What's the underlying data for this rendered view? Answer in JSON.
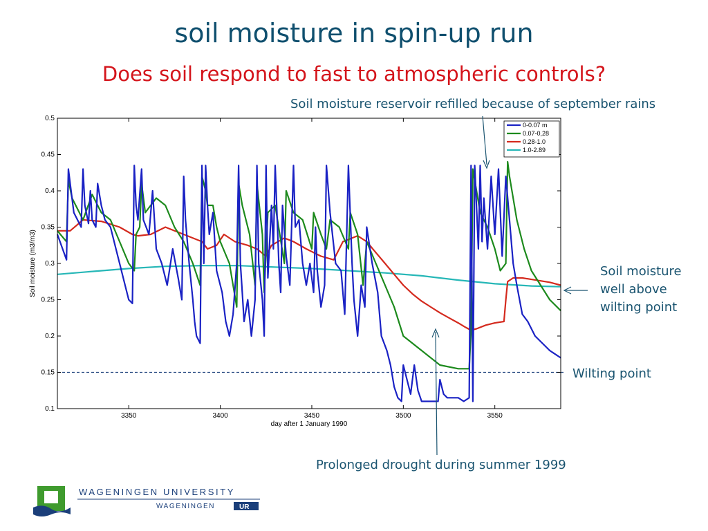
{
  "slide": {
    "title": "soil moisture in spin-up run",
    "subtitle": "Does soil respond to fast to atmospheric controls?"
  },
  "annotations": {
    "september_rains": "Soil moisture reservoir refilled because of september rains",
    "well_above": [
      "Soil moisture",
      "well above",
      "wilting point"
    ],
    "wilting_point": "Wilting point",
    "drought": "Prolonged drought during summer 1999"
  },
  "logo": {
    "line1": "WAGENINGEN UNIVERSITY",
    "line2_a": "WAGENINGEN",
    "line2_b": "UR",
    "green": "#3f9b2e",
    "blue": "#1b3f7a"
  },
  "colors": {
    "title": "#0f4f6e",
    "subtitle": "#d4141b",
    "annotation": "#1a5470"
  },
  "chart_data": {
    "type": "line",
    "title": "",
    "xlabel": "day after 1 January 1990",
    "ylabel": "Soil moisture (m3/m3)",
    "xlim": [
      3311,
      3586
    ],
    "ylim": [
      0.1,
      0.5
    ],
    "xticks": [
      3350,
      3400,
      3450,
      3500,
      3550
    ],
    "yticks": [
      0.1,
      0.15,
      0.2,
      0.25,
      0.3,
      0.35,
      0.4,
      0.45,
      0.5
    ],
    "legend_position": "top-right",
    "grid": false,
    "reference_line": {
      "y": 0.15,
      "style": "dashed",
      "color": "#1b3f7a"
    },
    "series": [
      {
        "name": "0-0.07 m",
        "color": "#1a22c4",
        "x": [
          3311,
          3316,
          3317,
          3318,
          3320,
          3324,
          3325,
          3326,
          3328,
          3329,
          3330,
          3332,
          3333,
          3335,
          3337,
          3340,
          3343,
          3345,
          3348,
          3350,
          3352,
          3353,
          3354,
          3355,
          3357,
          3358,
          3361,
          3363,
          3365,
          3368,
          3371,
          3374,
          3377,
          3379,
          3380,
          3381,
          3383,
          3385,
          3386,
          3387,
          3389,
          3390,
          3391,
          3392,
          3393,
          3394,
          3396,
          3398,
          3401,
          3403,
          3405,
          3407,
          3409,
          3410,
          3411,
          3412,
          3413,
          3415,
          3417,
          3419,
          3420,
          3421,
          3423,
          3424,
          3425,
          3426,
          3428,
          3429,
          3430,
          3432,
          3433,
          3434,
          3436,
          3438,
          3440,
          3441,
          3443,
          3445,
          3447,
          3449,
          3451,
          3452,
          3453,
          3455,
          3457,
          3458,
          3460,
          3463,
          3466,
          3468,
          3470,
          3472,
          3473,
          3475,
          3477,
          3479,
          3480,
          3483,
          3486,
          3488,
          3491,
          3493,
          3495,
          3497,
          3499,
          3500,
          3502,
          3504,
          3506,
          3508,
          3510,
          3513,
          3516,
          3519,
          3520,
          3522,
          3524,
          3527,
          3530,
          3533,
          3536,
          3537,
          3538,
          3539,
          3541,
          3542,
          3543,
          3544,
          3546,
          3548,
          3550,
          3552,
          3554,
          3556,
          3558,
          3560,
          3562,
          3565,
          3568,
          3572,
          3576,
          3580,
          3583,
          3586
        ],
        "y": [
          0.34,
          0.305,
          0.43,
          0.41,
          0.37,
          0.35,
          0.43,
          0.38,
          0.355,
          0.4,
          0.36,
          0.35,
          0.41,
          0.38,
          0.36,
          0.35,
          0.32,
          0.3,
          0.27,
          0.25,
          0.245,
          0.435,
          0.38,
          0.36,
          0.43,
          0.36,
          0.34,
          0.4,
          0.32,
          0.3,
          0.27,
          0.32,
          0.28,
          0.25,
          0.42,
          0.36,
          0.3,
          0.25,
          0.22,
          0.2,
          0.19,
          0.435,
          0.3,
          0.435,
          0.38,
          0.34,
          0.37,
          0.29,
          0.26,
          0.22,
          0.2,
          0.23,
          0.3,
          0.435,
          0.3,
          0.26,
          0.22,
          0.25,
          0.2,
          0.25,
          0.435,
          0.3,
          0.25,
          0.2,
          0.435,
          0.28,
          0.38,
          0.32,
          0.435,
          0.3,
          0.26,
          0.38,
          0.31,
          0.27,
          0.435,
          0.35,
          0.36,
          0.3,
          0.27,
          0.3,
          0.26,
          0.35,
          0.29,
          0.24,
          0.27,
          0.435,
          0.37,
          0.3,
          0.29,
          0.23,
          0.435,
          0.3,
          0.25,
          0.2,
          0.27,
          0.24,
          0.35,
          0.3,
          0.26,
          0.2,
          0.18,
          0.16,
          0.13,
          0.115,
          0.11,
          0.16,
          0.14,
          0.12,
          0.16,
          0.125,
          0.11,
          0.11,
          0.11,
          0.11,
          0.14,
          0.12,
          0.115,
          0.115,
          0.115,
          0.11,
          0.115,
          0.435,
          0.11,
          0.435,
          0.32,
          0.435,
          0.33,
          0.39,
          0.32,
          0.42,
          0.34,
          0.43,
          0.31,
          0.42,
          0.36,
          0.3,
          0.27,
          0.23,
          0.22,
          0.2,
          0.19,
          0.18,
          0.175,
          0.17
        ]
      },
      {
        "name": "0.07-0,28",
        "color": "#1d8a1d",
        "x": [
          3311,
          3316,
          3317,
          3319,
          3325,
          3330,
          3335,
          3340,
          3345,
          3350,
          3353,
          3354,
          3356,
          3357,
          3359,
          3365,
          3370,
          3375,
          3380,
          3385,
          3389,
          3390,
          3392,
          3393,
          3396,
          3398,
          3400,
          3405,
          3409,
          3410,
          3412,
          3416,
          3419,
          3420,
          3423,
          3424,
          3426,
          3430,
          3435,
          3436,
          3440,
          3445,
          3450,
          3451,
          3455,
          3458,
          3460,
          3465,
          3470,
          3471,
          3475,
          3478,
          3480,
          3485,
          3490,
          3495,
          3500,
          3510,
          3520,
          3530,
          3536,
          3537,
          3538,
          3542,
          3546,
          3550,
          3553,
          3556,
          3557,
          3558,
          3562,
          3566,
          3570,
          3575,
          3580,
          3586
        ],
        "y": [
          0.345,
          0.33,
          0.415,
          0.39,
          0.36,
          0.395,
          0.37,
          0.36,
          0.33,
          0.3,
          0.29,
          0.34,
          0.35,
          0.41,
          0.37,
          0.39,
          0.38,
          0.35,
          0.33,
          0.3,
          0.27,
          0.42,
          0.4,
          0.38,
          0.38,
          0.35,
          0.33,
          0.3,
          0.24,
          0.41,
          0.38,
          0.34,
          0.27,
          0.41,
          0.34,
          0.26,
          0.37,
          0.38,
          0.3,
          0.4,
          0.37,
          0.36,
          0.32,
          0.37,
          0.34,
          0.32,
          0.36,
          0.35,
          0.32,
          0.37,
          0.34,
          0.27,
          0.33,
          0.3,
          0.27,
          0.24,
          0.2,
          0.18,
          0.16,
          0.155,
          0.155,
          0.21,
          0.43,
          0.37,
          0.35,
          0.32,
          0.29,
          0.3,
          0.44,
          0.42,
          0.36,
          0.32,
          0.29,
          0.27,
          0.25,
          0.235
        ]
      },
      {
        "name": "0.28-1.0",
        "color": "#d42a1e",
        "x": [
          3311,
          3318,
          3325,
          3335,
          3345,
          3352,
          3355,
          3362,
          3370,
          3380,
          3390,
          3393,
          3398,
          3402,
          3408,
          3415,
          3420,
          3425,
          3428,
          3435,
          3440,
          3447,
          3455,
          3462,
          3467,
          3475,
          3480,
          3485,
          3490,
          3495,
          3500,
          3505,
          3510,
          3515,
          3520,
          3525,
          3530,
          3534,
          3537,
          3540,
          3545,
          3550,
          3555,
          3556,
          3557,
          3560,
          3565,
          3570,
          3580,
          3586
        ],
        "y": [
          0.345,
          0.345,
          0.36,
          0.358,
          0.35,
          0.34,
          0.338,
          0.34,
          0.35,
          0.34,
          0.33,
          0.32,
          0.325,
          0.34,
          0.33,
          0.325,
          0.32,
          0.31,
          0.325,
          0.335,
          0.33,
          0.32,
          0.31,
          0.305,
          0.33,
          0.338,
          0.33,
          0.315,
          0.3,
          0.285,
          0.27,
          0.258,
          0.248,
          0.24,
          0.232,
          0.225,
          0.218,
          0.212,
          0.208,
          0.21,
          0.215,
          0.218,
          0.22,
          0.25,
          0.275,
          0.28,
          0.28,
          0.278,
          0.274,
          0.27
        ]
      },
      {
        "name": "1.0-2.89",
        "color": "#26b7b7",
        "x": [
          3311,
          3330,
          3350,
          3370,
          3390,
          3410,
          3430,
          3450,
          3470,
          3490,
          3510,
          3530,
          3550,
          3570,
          3586
        ],
        "y": [
          0.285,
          0.289,
          0.293,
          0.296,
          0.297,
          0.297,
          0.295,
          0.293,
          0.29,
          0.287,
          0.283,
          0.277,
          0.272,
          0.269,
          0.268
        ]
      }
    ]
  }
}
